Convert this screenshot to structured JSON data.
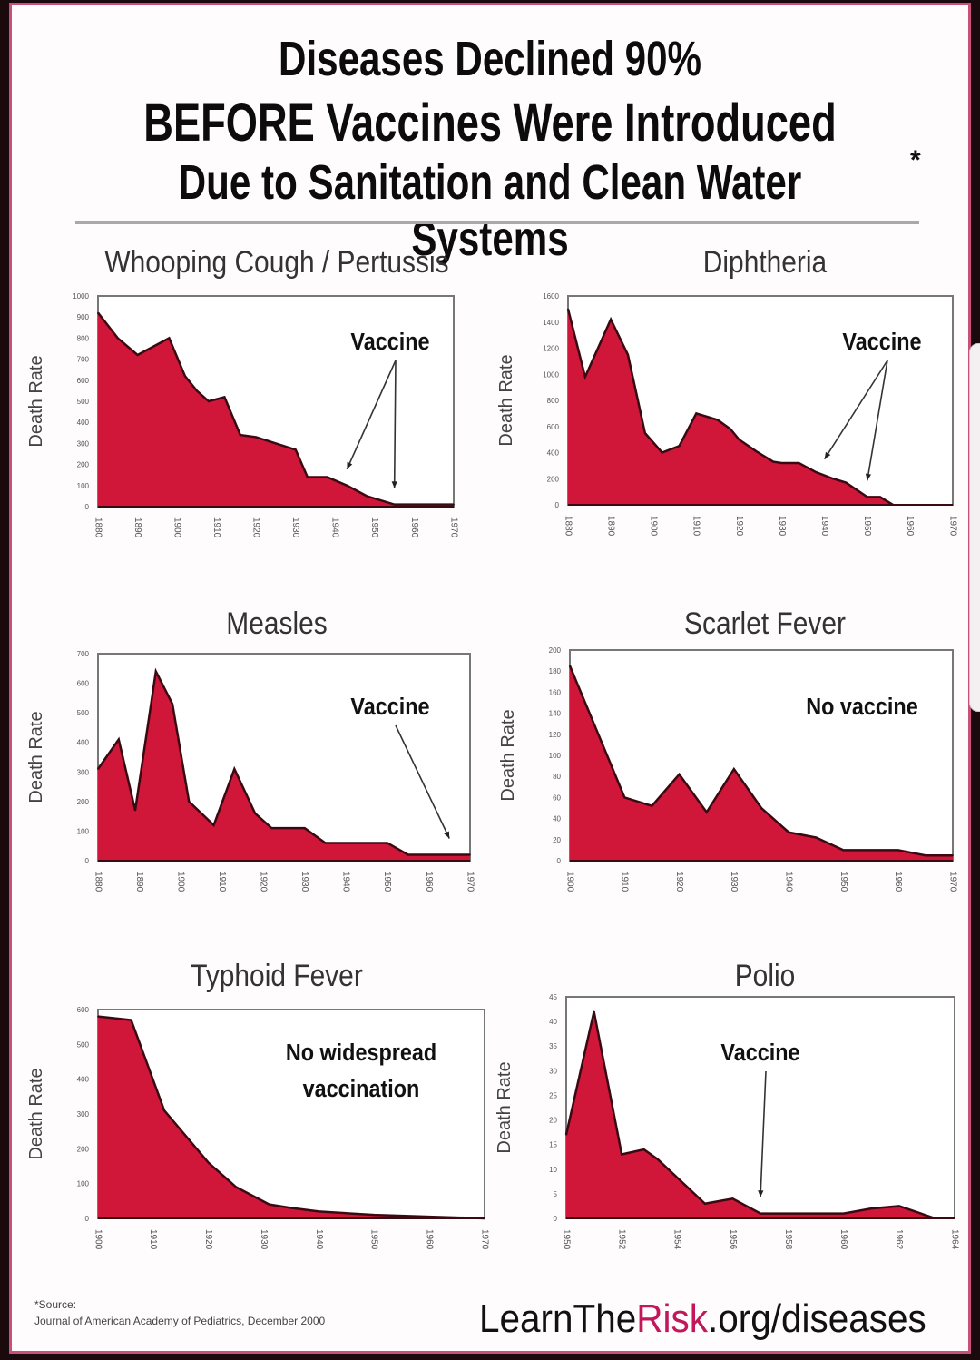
{
  "header": {
    "line1": "Diseases Declined 90%",
    "line2": "BEFORE Vaccines Were Introduced",
    "line3": "Due to Sanitation and Clean Water Systems",
    "asterisk": "*"
  },
  "footer": {
    "source_label": "*Source:",
    "source_text": "Journal of American Academy of Pediatrics, December 2000",
    "url_prefix": "LearnThe",
    "url_highlight": "Risk",
    "url_suffix": ".org/diseases"
  },
  "colors": {
    "fill": "#d0173a",
    "outline": "#3a0a12",
    "accent": "#c2185b"
  },
  "chart_data": [
    {
      "type": "area",
      "title": "Whooping Cough / Pertussis",
      "ylabel": "Death Rate",
      "xlabel": "",
      "xlim": [
        1880,
        1970
      ],
      "ylim": [
        0,
        1000
      ],
      "yticks": [
        0,
        100,
        200,
        300,
        400,
        500,
        600,
        700,
        800,
        900,
        1000
      ],
      "xticks": [
        1880,
        1890,
        1900,
        1910,
        1920,
        1930,
        1940,
        1950,
        1960,
        1970
      ],
      "x": [
        1880,
        1885,
        1890,
        1895,
        1898,
        1902,
        1905,
        1908,
        1912,
        1916,
        1920,
        1925,
        1930,
        1933,
        1938,
        1943,
        1948,
        1955,
        1958,
        1965,
        1970
      ],
      "y": [
        920,
        800,
        720,
        770,
        800,
        620,
        550,
        500,
        520,
        340,
        330,
        300,
        270,
        140,
        140,
        100,
        50,
        10,
        10,
        10,
        10
      ],
      "annotation": "Vaccine",
      "annotation_years": [
        1943,
        1955
      ]
    },
    {
      "type": "area",
      "title": "Diphtheria",
      "ylabel": "Death Rate",
      "xlabel": "",
      "xlim": [
        1880,
        1970
      ],
      "ylim": [
        0,
        1600
      ],
      "yticks": [
        0,
        200,
        400,
        600,
        800,
        1000,
        1200,
        1400,
        1600
      ],
      "xticks": [
        1880,
        1890,
        1900,
        1910,
        1920,
        1930,
        1940,
        1950,
        1960,
        1970
      ],
      "x": [
        1880,
        1884,
        1890,
        1894,
        1898,
        1902,
        1906,
        1910,
        1915,
        1918,
        1920,
        1924,
        1928,
        1930,
        1934,
        1938,
        1942,
        1945,
        1950,
        1953,
        1956
      ],
      "y": [
        1500,
        980,
        1420,
        1150,
        550,
        400,
        450,
        700,
        650,
        580,
        500,
        410,
        330,
        320,
        320,
        250,
        200,
        170,
        60,
        60,
        0
      ],
      "annotation": "Vaccine",
      "annotation_years": [
        1940,
        1950
      ]
    },
    {
      "type": "area",
      "title": "Measles",
      "ylabel": "Death Rate",
      "xlabel": "",
      "xlim": [
        1880,
        1970
      ],
      "ylim": [
        0,
        700
      ],
      "yticks": [
        0,
        100,
        200,
        300,
        400,
        500,
        600,
        700
      ],
      "xticks": [
        1880,
        1890,
        1900,
        1910,
        1920,
        1930,
        1940,
        1950,
        1960,
        1970
      ],
      "x": [
        1880,
        1885,
        1889,
        1894,
        1898,
        1902,
        1908,
        1913,
        1918,
        1922,
        1930,
        1935,
        1950,
        1955,
        1970
      ],
      "y": [
        310,
        410,
        170,
        640,
        530,
        200,
        120,
        310,
        160,
        110,
        110,
        60,
        60,
        20,
        20
      ],
      "annotation": "Vaccine",
      "annotation_years": [
        1965
      ]
    },
    {
      "type": "area",
      "title": "Scarlet Fever",
      "ylabel": "Death Rate",
      "xlabel": "",
      "xlim": [
        1900,
        1970
      ],
      "ylim": [
        0,
        200
      ],
      "yticks": [
        0,
        20,
        40,
        60,
        80,
        100,
        120,
        140,
        160,
        180,
        200
      ],
      "xticks": [
        1900,
        1910,
        1920,
        1930,
        1940,
        1950,
        1960,
        1970
      ],
      "x": [
        1900,
        1910,
        1915,
        1920,
        1925,
        1930,
        1935,
        1940,
        1945,
        1950,
        1955,
        1960,
        1965,
        1970
      ],
      "y": [
        185,
        60,
        52,
        82,
        46,
        87,
        50,
        27,
        22,
        10,
        10,
        10,
        5,
        5
      ],
      "annotation": "No vaccine",
      "annotation_years": []
    },
    {
      "type": "area",
      "title": "Typhoid Fever",
      "ylabel": "Death Rate",
      "xlabel": "",
      "xlim": [
        1900,
        1970
      ],
      "ylim": [
        0,
        600
      ],
      "yticks": [
        0,
        100,
        200,
        300,
        400,
        500,
        600
      ],
      "xticks": [
        1900,
        1910,
        1920,
        1930,
        1940,
        1950,
        1960,
        1970
      ],
      "x": [
        1900,
        1906,
        1912,
        1920,
        1925,
        1931,
        1935,
        1940,
        1950,
        1960,
        1970
      ],
      "y": [
        580,
        570,
        310,
        160,
        90,
        40,
        30,
        20,
        10,
        5,
        0
      ],
      "annotation": "No widespread vaccination",
      "annotation_years": []
    },
    {
      "type": "area",
      "title": "Polio",
      "ylabel": "Death Rate",
      "xlabel": "",
      "xlim": [
        1950,
        1964
      ],
      "ylim": [
        0,
        45
      ],
      "yticks": [
        0,
        5,
        10,
        15,
        20,
        25,
        30,
        35,
        40,
        45
      ],
      "xticks": [
        1950,
        1952,
        1954,
        1956,
        1958,
        1960,
        1962,
        1964
      ],
      "x": [
        1950,
        1951,
        1952,
        1952.8,
        1953.3,
        1955,
        1956,
        1957,
        1958,
        1960,
        1961,
        1962,
        1963.3
      ],
      "y": [
        17,
        42,
        13,
        14,
        12,
        3,
        4,
        1,
        1,
        1,
        2,
        2.5,
        0
      ],
      "annotation": "Vaccine",
      "annotation_years": [
        1957
      ]
    }
  ]
}
